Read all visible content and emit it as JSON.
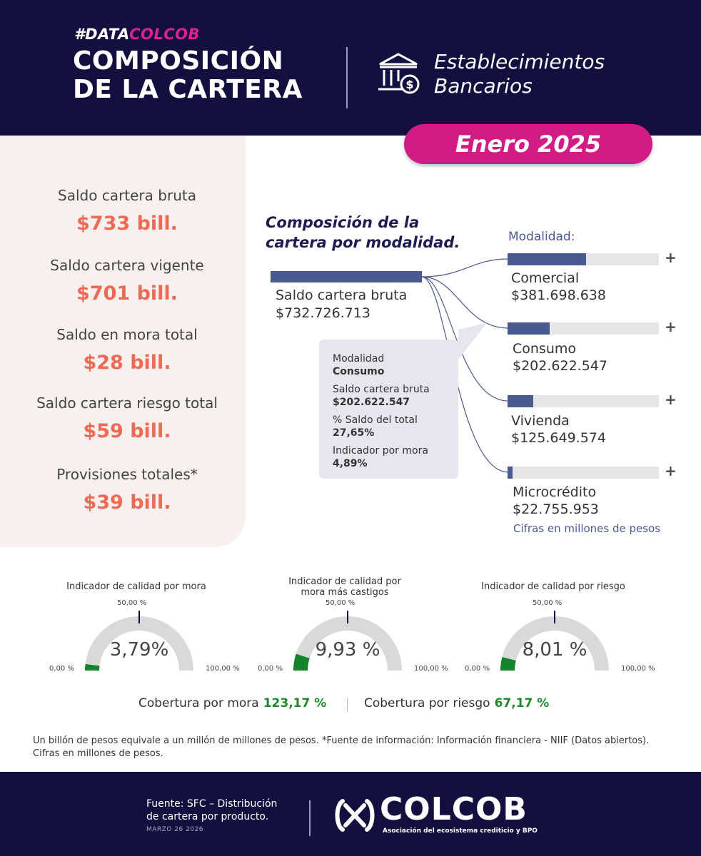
{
  "header": {
    "hashtag_white": "#DATA",
    "hashtag_pink": "COLCOB",
    "title_line1": "COMPOSICIÓN",
    "title_line2": "DE LA CARTERA",
    "entity_line1": "Establecimientos",
    "entity_line2": "Bancarios",
    "period": "Enero 2025",
    "icon": "bank-dollar-icon"
  },
  "kpis": [
    {
      "label": "Saldo cartera bruta",
      "value": "$733 bill."
    },
    {
      "label": "Saldo cartera vigente",
      "value": "$701 bill."
    },
    {
      "label": "Saldo en mora total",
      "value": "$28 bill."
    },
    {
      "label": "Saldo cartera riesgo total",
      "value": "$59 bill."
    },
    {
      "label": "Provisiones totales*",
      "value": "$39 bill."
    }
  ],
  "composition": {
    "title_line1": "Composición de la",
    "title_line2": "cartera por modalidad.",
    "modalidad_header": "Modalidad:",
    "total_label": "Saldo cartera bruta",
    "total_value": "$732.726.713",
    "plus": "+",
    "units_note": "Cifras en millones de pesos",
    "tooltip": {
      "l1": "Modalidad",
      "v1": "Consumo",
      "l2": "Saldo cartera bruta",
      "v2": "$202.622.547",
      "l3": "% Saldo del total",
      "v3": "27,65%",
      "l4": "Indicador por mora",
      "v4": "4,89%"
    }
  },
  "chart_data": [
    {
      "type": "bar",
      "categories": [
        "Comercial",
        "Consumo",
        "Vivienda",
        "Microcrédito"
      ],
      "series": [
        {
          "values": [
            381698638,
            202622547,
            125649574,
            22755953
          ]
        }
      ],
      "value_labels": [
        "$381.698.638",
        "$202.622.547",
        "$125.649.574",
        "$22.755.953"
      ],
      "total": 732726713,
      "xlabel": "",
      "ylabel": ""
    },
    {
      "type": "gauge",
      "title": "Indicador de calidad por mora",
      "value": 3.79,
      "value_label": "3,79%",
      "min_label": "0,00 %",
      "mid_label": "50,00 %",
      "max_label": "100,00 %",
      "range": [
        0,
        100
      ],
      "fill_color": "#14832a",
      "track_color": "#d9d9d9"
    },
    {
      "type": "gauge",
      "title_line1": "Indicador de calidad por",
      "title_line2": "mora más castigos",
      "value": 9.93,
      "value_label": "9,93 %",
      "min_label": "0,00 %",
      "mid_label": "50,00 %",
      "max_label": "100,00 %",
      "range": [
        0,
        100
      ],
      "fill_color": "#14832a",
      "track_color": "#d9d9d9"
    },
    {
      "type": "gauge",
      "title": "Indicador de calidad por riesgo",
      "value": 8.01,
      "value_label": "8,01 %",
      "min_label": "0,00 %",
      "mid_label": "50,00 %",
      "max_label": "100,00 %",
      "range": [
        0,
        100
      ],
      "fill_color": "#14832a",
      "track_color": "#d9d9d9"
    }
  ],
  "coverage": {
    "mora_label": "Cobertura por mora",
    "mora_value": "123,17 %",
    "riesgo_label": "Cobertura por riesgo",
    "riesgo_value": "67,17 %"
  },
  "footnote_line1": "Un billón de pesos equivale a un millón de millones de pesos. *Fuente de información: Información financiera - NIIF (Datos abiertos).",
  "footnote_line2": "Cifras en millones de pesos.",
  "footer": {
    "source_line1": "Fuente: SFC – Distribución",
    "source_line2": "de cartera por producto.",
    "date": "MARZO 26 2026",
    "logo_word": "COLCOB",
    "logo_sub": "Asociación del ecosistema crediticio y BPO"
  },
  "colors": {
    "navy": "#13103f",
    "pink": "#d31b86",
    "accent_orange": "#ef6a55",
    "bar_blue": "#4a5a90",
    "green": "#14832a"
  }
}
